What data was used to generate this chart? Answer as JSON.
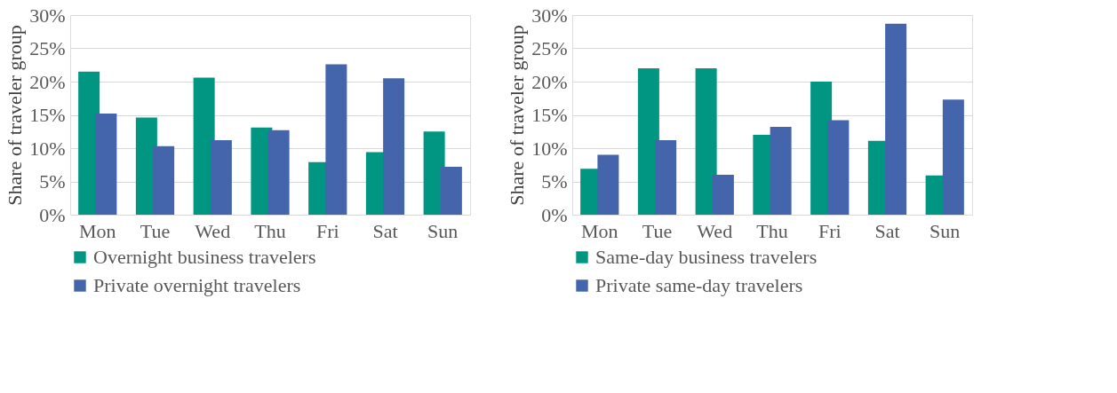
{
  "chart_data": [
    {
      "type": "bar",
      "ylabel": "Share of traveler group",
      "categories": [
        "Mon",
        "Tue",
        "Wed",
        "Thu",
        "Fri",
        "Sat",
        "Sun"
      ],
      "series": [
        {
          "name": "Overnight business travelers",
          "color": "#009682",
          "values": [
            21.5,
            14.6,
            20.6,
            13.1,
            7.9,
            9.4,
            12.5
          ]
        },
        {
          "name": "Private overnight travelers",
          "color": "#4464ab",
          "values": [
            15.2,
            10.3,
            11.2,
            12.7,
            22.6,
            20.5,
            7.2
          ]
        }
      ],
      "ylim": [
        0,
        30
      ],
      "yticks": [
        {
          "value": 0,
          "label": "0%"
        },
        {
          "value": 5,
          "label": "5%"
        },
        {
          "value": 10,
          "label": "10%"
        },
        {
          "value": 15,
          "label": "15%"
        },
        {
          "value": 20,
          "label": "20%"
        },
        {
          "value": 25,
          "label": "25%"
        },
        {
          "value": 30,
          "label": "30%"
        }
      ],
      "grid": "y",
      "legend": "bottom"
    },
    {
      "type": "bar",
      "ylabel": "Share of traveler group",
      "categories": [
        "Mon",
        "Tue",
        "Wed",
        "Thu",
        "Fri",
        "Sat",
        "Sun"
      ],
      "series": [
        {
          "name": "Same-day business travelers",
          "color": "#009682",
          "values": [
            6.9,
            22.0,
            22.0,
            12.0,
            20.0,
            11.1,
            5.9
          ]
        },
        {
          "name": "Private same-day travelers",
          "color": "#4464ab",
          "values": [
            9.0,
            11.2,
            6.0,
            13.2,
            14.2,
            28.7,
            17.3
          ]
        }
      ],
      "ylim": [
        0,
        30
      ],
      "yticks": [
        {
          "value": 0,
          "label": "0%"
        },
        {
          "value": 5,
          "label": "5%"
        },
        {
          "value": 10,
          "label": "10%"
        },
        {
          "value": 15,
          "label": "15%"
        },
        {
          "value": 20,
          "label": "20%"
        },
        {
          "value": 25,
          "label": "25%"
        },
        {
          "value": 30,
          "label": "30%"
        }
      ],
      "grid": "y",
      "legend": "bottom"
    }
  ]
}
